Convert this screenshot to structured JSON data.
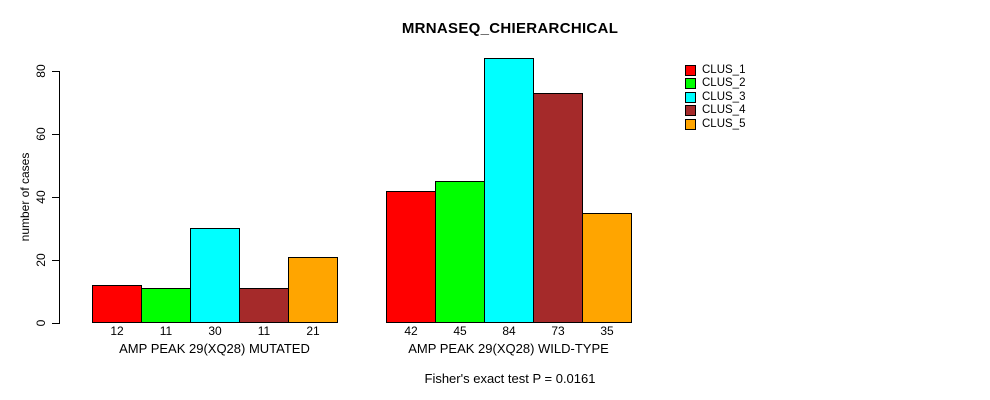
{
  "figure": {
    "title": "MRNASEQ_CHIERARCHICAL",
    "ylabel": "number of cases",
    "annotation": "Fisher's exact test P = 0.0161"
  },
  "chart_data": {
    "type": "bar",
    "title": "MRNASEQ_CHIERARCHICAL",
    "xlabel": "",
    "ylabel": "number of cases",
    "ylim": [
      0,
      80
    ],
    "yticks": [
      0,
      20,
      40,
      60,
      80
    ],
    "ytick_labels": [
      "0",
      "20",
      "40",
      "60",
      "80"
    ],
    "grid": false,
    "bar_borders": true,
    "bar_value_labels": true,
    "legend_position": "right",
    "categories": [
      "AMP PEAK 29(XQ28) MUTATED",
      "AMP PEAK 29(XQ28) WILD-TYPE"
    ],
    "series": [
      {
        "name": "CLUS_1",
        "color": "#FF0000",
        "values": [
          12,
          42
        ]
      },
      {
        "name": "CLUS_2",
        "color": "#00FF00",
        "values": [
          11,
          45
        ]
      },
      {
        "name": "CLUS_3",
        "color": "#00FFFF",
        "values": [
          30,
          84
        ]
      },
      {
        "name": "CLUS_4",
        "color": "#A52A2A",
        "values": [
          11,
          73
        ]
      },
      {
        "name": "CLUS_5",
        "color": "#FFA500",
        "values": [
          21,
          35
        ]
      }
    ],
    "annotation": "Fisher's exact test P = 0.0161"
  }
}
